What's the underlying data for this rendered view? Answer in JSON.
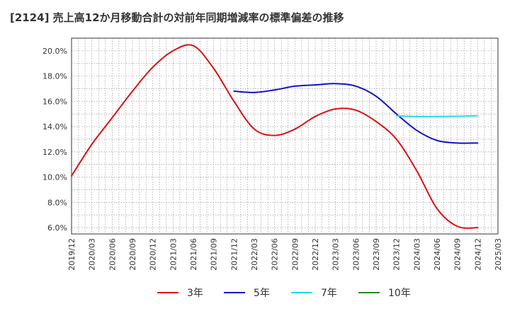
{
  "title": "[2124]  売上高12か月移動合計の対前年同期増減率の標準偏差の推移",
  "chart_data": {
    "type": "line",
    "title": "[2124]  売上高12か月移動合計の対前年同期増減率の標準偏差の推移",
    "xlabel": "",
    "ylabel": "",
    "ylim": [
      5.5,
      21.0
    ],
    "y_ticks": [
      6.0,
      8.0,
      10.0,
      12.0,
      14.0,
      16.0,
      18.0,
      20.0
    ],
    "y_tick_labels": [
      "6.0%",
      "8.0%",
      "10.0%",
      "12.0%",
      "14.0%",
      "16.0%",
      "18.0%",
      "20.0%"
    ],
    "x_tick_labels": [
      "2019/12",
      "2020/03",
      "2020/06",
      "2020/09",
      "2020/12",
      "2021/03",
      "2021/06",
      "2021/09",
      "2021/12",
      "2022/03",
      "2022/06",
      "2022/09",
      "2022/12",
      "2023/03",
      "2023/06",
      "2023/09",
      "2023/12",
      "2024/03",
      "2024/06",
      "2024/09",
      "2024/12",
      "2025/03"
    ],
    "grid": true,
    "legend": "bottom",
    "series": [
      {
        "name": "3年",
        "color": "#dd1111",
        "x": [
          "2019/12",
          "2020/03",
          "2020/06",
          "2020/09",
          "2020/12",
          "2021/03",
          "2021/06",
          "2021/09",
          "2021/12",
          "2022/03",
          "2022/06",
          "2022/09",
          "2022/12",
          "2023/03",
          "2023/06",
          "2023/09",
          "2023/12",
          "2024/03",
          "2024/06",
          "2024/09",
          "2024/12"
        ],
        "values": [
          10.1,
          12.6,
          14.7,
          16.8,
          18.7,
          20.0,
          20.4,
          18.6,
          16.0,
          13.8,
          13.3,
          13.8,
          14.8,
          15.4,
          15.3,
          14.4,
          13.0,
          10.5,
          7.5,
          6.1,
          6.0
        ]
      },
      {
        "name": "5年",
        "color": "#1111cc",
        "x": [
          "2021/12",
          "2022/03",
          "2022/06",
          "2022/09",
          "2022/12",
          "2023/03",
          "2023/06",
          "2023/09",
          "2023/12",
          "2024/03",
          "2024/06",
          "2024/09",
          "2024/12"
        ],
        "values": [
          16.8,
          16.7,
          16.9,
          17.2,
          17.3,
          17.4,
          17.2,
          16.4,
          15.0,
          13.7,
          12.9,
          12.7,
          12.7
        ]
      },
      {
        "name": "7年",
        "color": "#22ddee",
        "x": [
          "2023/12",
          "2024/03",
          "2024/06",
          "2024/09",
          "2024/12"
        ],
        "values": [
          14.85,
          14.8,
          14.8,
          14.82,
          14.85
        ]
      },
      {
        "name": "10年",
        "color": "#228822",
        "x": [],
        "values": []
      }
    ]
  }
}
